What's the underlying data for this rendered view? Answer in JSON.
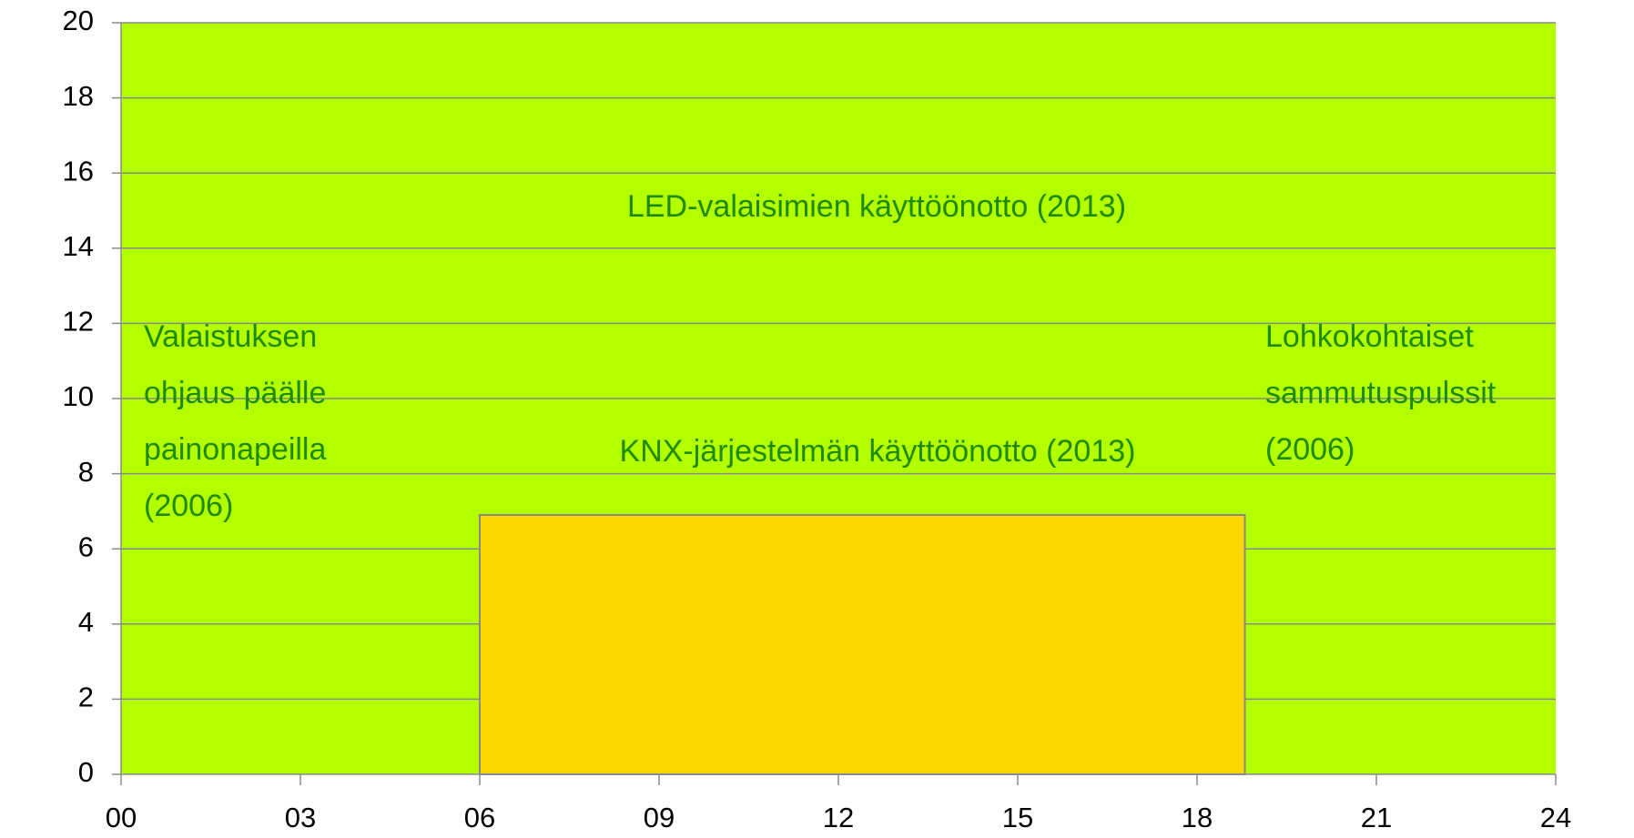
{
  "chart_data": {
    "type": "area",
    "xlim": [
      0,
      24
    ],
    "ylim": [
      0,
      20
    ],
    "xticks": [
      {
        "value": 0,
        "label": "00"
      },
      {
        "value": 3,
        "label": "03"
      },
      {
        "value": 6,
        "label": "06"
      },
      {
        "value": 9,
        "label": "09"
      },
      12,
      15,
      18,
      21,
      24
    ],
    "yticks": [
      0,
      2,
      4,
      6,
      8,
      10,
      12,
      14,
      16,
      18,
      20
    ],
    "grid": true,
    "series": [
      {
        "color": "#b3ff00",
        "x": [
          0,
          24
        ],
        "values": [
          20,
          20
        ]
      },
      {
        "color": "#ffd700",
        "x": [
          6,
          18.8
        ],
        "values": [
          6.9,
          6.9
        ]
      }
    ],
    "annotations": [
      {
        "lines": [
          "LED-valaisimien käyttöönotto (2013)"
        ]
      },
      {
        "lines": [
          "KNX-järjestelmän käyttöönotto (2013)"
        ]
      },
      {
        "lines": [
          "Valaistuksen",
          "ohjaus päälle",
          "painonapeilla",
          "(2006)"
        ]
      },
      {
        "lines": [
          "Lohkokohtaiset",
          "sammutuspulssit",
          "(2006)"
        ]
      }
    ]
  }
}
